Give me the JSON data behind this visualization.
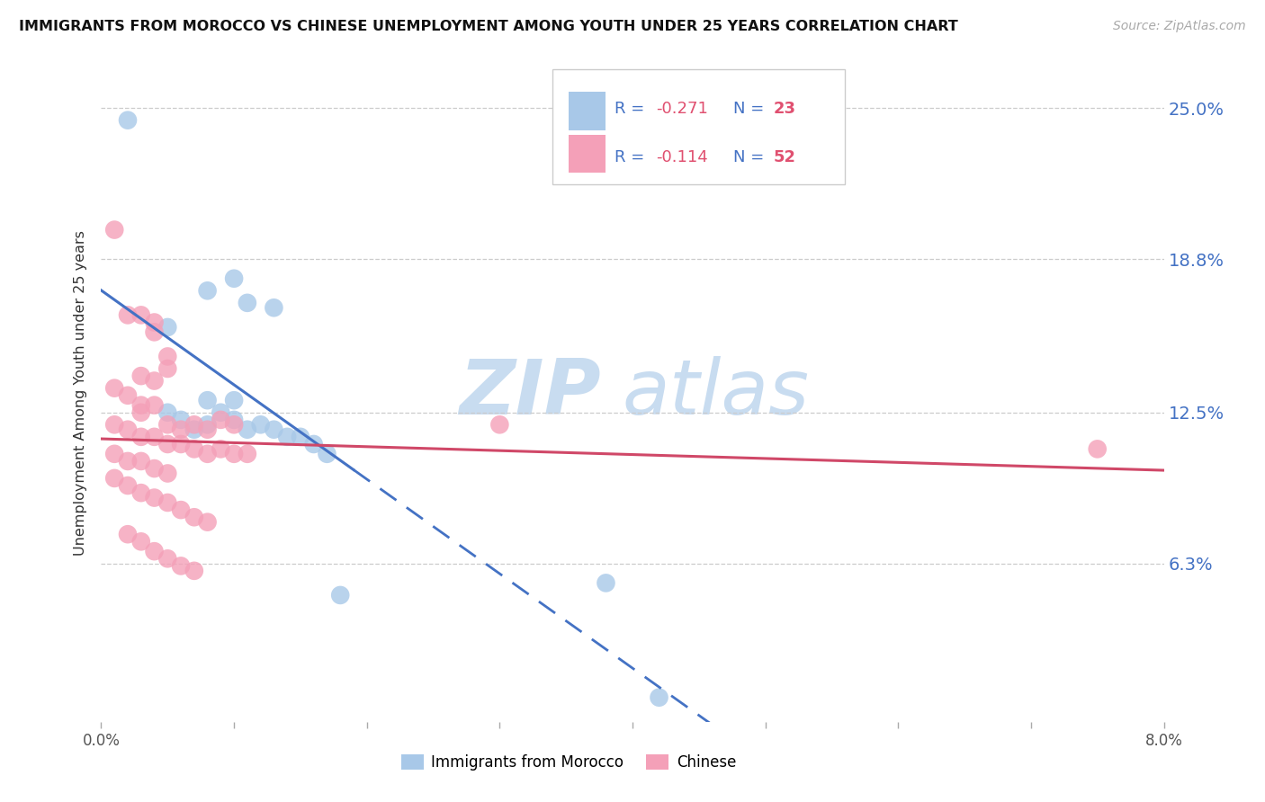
{
  "title": "IMMIGRANTS FROM MOROCCO VS CHINESE UNEMPLOYMENT AMONG YOUTH UNDER 25 YEARS CORRELATION CHART",
  "source": "Source: ZipAtlas.com",
  "ylabel": "Unemployment Among Youth under 25 years",
  "ytick_labels": [
    "25.0%",
    "18.8%",
    "12.5%",
    "6.3%"
  ],
  "ytick_values": [
    0.25,
    0.188,
    0.125,
    0.063
  ],
  "xlim": [
    0.0,
    0.08
  ],
  "ylim": [
    -0.002,
    0.268
  ],
  "blue_scatter_color": "#A8C8E8",
  "pink_scatter_color": "#F4A0B8",
  "trendline_blue_color": "#4472C4",
  "trendline_pink_color": "#D04868",
  "watermark_zip": "ZIP",
  "watermark_atlas": "atlas",
  "morocco_points": [
    [
      0.002,
      0.245
    ],
    [
      0.005,
      0.16
    ],
    [
      0.008,
      0.175
    ],
    [
      0.01,
      0.18
    ],
    [
      0.011,
      0.17
    ],
    [
      0.013,
      0.168
    ],
    [
      0.008,
      0.13
    ],
    [
      0.01,
      0.13
    ],
    [
      0.005,
      0.125
    ],
    [
      0.006,
      0.122
    ],
    [
      0.007,
      0.118
    ],
    [
      0.008,
      0.12
    ],
    [
      0.009,
      0.125
    ],
    [
      0.01,
      0.122
    ],
    [
      0.011,
      0.118
    ],
    [
      0.012,
      0.12
    ],
    [
      0.013,
      0.118
    ],
    [
      0.014,
      0.115
    ],
    [
      0.015,
      0.115
    ],
    [
      0.016,
      0.112
    ],
    [
      0.017,
      0.108
    ],
    [
      0.018,
      0.05
    ],
    [
      0.038,
      0.055
    ],
    [
      0.042,
      0.008
    ]
  ],
  "chinese_points": [
    [
      0.001,
      0.2
    ],
    [
      0.002,
      0.165
    ],
    [
      0.003,
      0.165
    ],
    [
      0.004,
      0.162
    ],
    [
      0.004,
      0.158
    ],
    [
      0.005,
      0.148
    ],
    [
      0.005,
      0.143
    ],
    [
      0.003,
      0.14
    ],
    [
      0.004,
      0.138
    ],
    [
      0.001,
      0.135
    ],
    [
      0.002,
      0.132
    ],
    [
      0.003,
      0.128
    ],
    [
      0.003,
      0.125
    ],
    [
      0.004,
      0.128
    ],
    [
      0.005,
      0.12
    ],
    [
      0.006,
      0.118
    ],
    [
      0.007,
      0.12
    ],
    [
      0.008,
      0.118
    ],
    [
      0.009,
      0.122
    ],
    [
      0.01,
      0.12
    ],
    [
      0.001,
      0.12
    ],
    [
      0.002,
      0.118
    ],
    [
      0.003,
      0.115
    ],
    [
      0.004,
      0.115
    ],
    [
      0.005,
      0.112
    ],
    [
      0.006,
      0.112
    ],
    [
      0.007,
      0.11
    ],
    [
      0.008,
      0.108
    ],
    [
      0.009,
      0.11
    ],
    [
      0.01,
      0.108
    ],
    [
      0.011,
      0.108
    ],
    [
      0.001,
      0.108
    ],
    [
      0.002,
      0.105
    ],
    [
      0.003,
      0.105
    ],
    [
      0.004,
      0.102
    ],
    [
      0.005,
      0.1
    ],
    [
      0.001,
      0.098
    ],
    [
      0.002,
      0.095
    ],
    [
      0.003,
      0.092
    ],
    [
      0.004,
      0.09
    ],
    [
      0.005,
      0.088
    ],
    [
      0.006,
      0.085
    ],
    [
      0.007,
      0.082
    ],
    [
      0.008,
      0.08
    ],
    [
      0.002,
      0.075
    ],
    [
      0.003,
      0.072
    ],
    [
      0.004,
      0.068
    ],
    [
      0.005,
      0.065
    ],
    [
      0.006,
      0.062
    ],
    [
      0.007,
      0.06
    ],
    [
      0.03,
      0.12
    ],
    [
      0.075,
      0.11
    ]
  ]
}
